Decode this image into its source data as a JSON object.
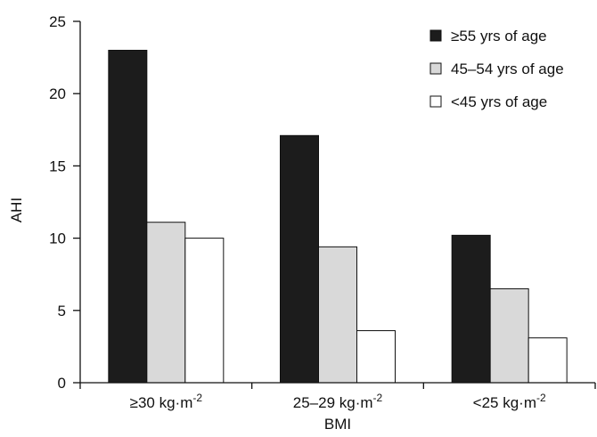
{
  "chart_data": {
    "type": "bar",
    "xlabel": "BMI",
    "ylabel": "AHI",
    "ylim": [
      0,
      25
    ],
    "yticks": [
      0,
      5,
      10,
      15,
      20,
      25
    ],
    "categories": [
      {
        "text": "≥30 kg·m",
        "sup": "-2"
      },
      {
        "text": "25–29 kg·m",
        "sup": "-2"
      },
      {
        "text": "<25 kg·m",
        "sup": "-2"
      }
    ],
    "series": [
      {
        "name": "≥55 yrs of age",
        "color": "#1c1c1c",
        "values": [
          23.0,
          17.1,
          10.2
        ]
      },
      {
        "name": "45–54 yrs of age",
        "color": "#d9d9d9",
        "values": [
          11.1,
          9.4,
          6.5
        ]
      },
      {
        "name": "<45 yrs of age",
        "color": "#ffffff",
        "values": [
          10.0,
          3.6,
          3.1
        ]
      }
    ],
    "legend_position": "top-right",
    "grid": false
  }
}
